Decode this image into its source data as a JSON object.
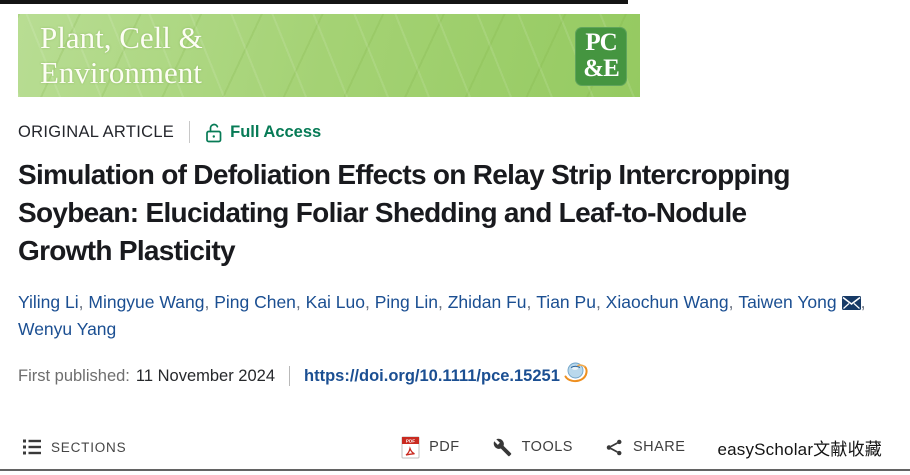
{
  "banner": {
    "journal_name_line1": "Plant, Cell &",
    "journal_name_line2": "Environment",
    "logo_top": "PC",
    "logo_bottom": "&E"
  },
  "meta": {
    "article_type": "ORIGINAL ARTICLE",
    "access_label": "Full Access"
  },
  "title": {
    "lines": [
      "Simulation of Defoliation Effects on Relay Strip Intercropping",
      "Soybean: Elucidating Foliar Shedding and Leaf-to-Nodule",
      "Growth Plasticity"
    ]
  },
  "authors": {
    "line1": [
      "Yiling Li",
      "Mingyue Wang",
      "Ping Chen",
      "Kai Luo",
      "Ping Lin",
      "Zhidan Fu",
      "Tian Pu",
      "Xiaochun Wang",
      "Taiwen Yong"
    ],
    "line2": [
      "Wenyu Yang"
    ]
  },
  "publication": {
    "label": "First published:",
    "date": "11 November 2024",
    "doi": "https://doi.org/10.1111/pce.15251"
  },
  "toolbar": {
    "sections_label": "SECTIONS",
    "pdf_label": "PDF",
    "tools_label": "TOOLS",
    "share_label": "SHARE",
    "extension_label": "easyScholar文献收藏"
  },
  "colors": {
    "access_green": "#077b56",
    "author_blue": "#1b4f92",
    "banner_green": "#a4d274",
    "logo_green": "#459540",
    "pdf_red": "#c92a20"
  }
}
